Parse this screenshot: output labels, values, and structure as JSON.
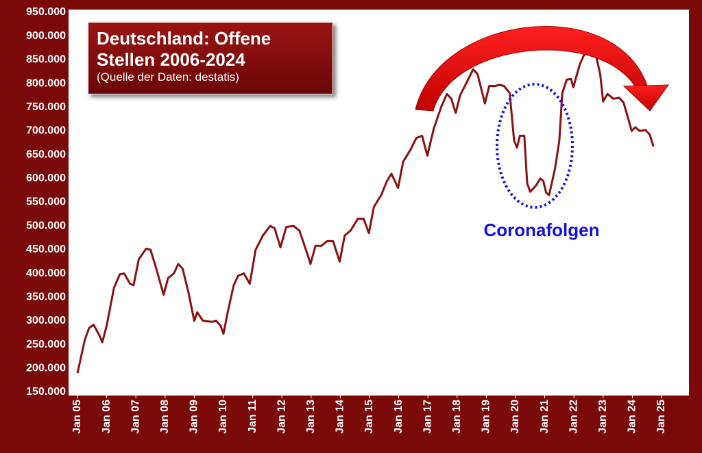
{
  "chart_data": {
    "type": "line",
    "title": "Deutschland: Offene Stellen 2006-2024",
    "subtitle": "(Quelle der Daten: destatis)",
    "annotation": "Coronafolgen",
    "color": "#8b1010",
    "xlim": [
      2005,
      2025
    ],
    "xticks": [
      {
        "value": 2005,
        "label": "Jan 05"
      },
      {
        "value": 2006,
        "label": "Jan 06"
      },
      {
        "value": 2007,
        "label": "Jan 07"
      },
      {
        "value": 2008,
        "label": "Jan 08"
      },
      {
        "value": 2009,
        "label": "Jan 09"
      },
      {
        "value": 2010,
        "label": "Jan 10"
      },
      {
        "value": 2011,
        "label": "Jan 11"
      },
      {
        "value": 2012,
        "label": "Jan 12"
      },
      {
        "value": 2013,
        "label": "Jan 13"
      },
      {
        "value": 2014,
        "label": "Jan 14"
      },
      {
        "value": 2015,
        "label": "Jan 15"
      },
      {
        "value": 2016,
        "label": "Jan 16"
      },
      {
        "value": 2017,
        "label": "Jan 17"
      },
      {
        "value": 2018,
        "label": "Jan 18"
      },
      {
        "value": 2019,
        "label": "Jan 19"
      },
      {
        "value": 2020,
        "label": "Jan 20"
      },
      {
        "value": 2021,
        "label": "Jan 21"
      },
      {
        "value": 2022,
        "label": "Jan 22"
      },
      {
        "value": 2023,
        "label": "Jan 23"
      },
      {
        "value": 2024,
        "label": "Jan 24"
      },
      {
        "value": 2025,
        "label": "Jan 25"
      }
    ],
    "ylim": [
      150000,
      950000
    ],
    "yticks": [
      {
        "value": 150000,
        "label": "150.000"
      },
      {
        "value": 200000,
        "label": "200.000"
      },
      {
        "value": 250000,
        "label": "250.000"
      },
      {
        "value": 300000,
        "label": "300.000"
      },
      {
        "value": 350000,
        "label": "350.000"
      },
      {
        "value": 400000,
        "label": "400.000"
      },
      {
        "value": 450000,
        "label": "450.000"
      },
      {
        "value": 500000,
        "label": "500.000"
      },
      {
        "value": 550000,
        "label": "550.000"
      },
      {
        "value": 600000,
        "label": "600.000"
      },
      {
        "value": 650000,
        "label": "650.000"
      },
      {
        "value": 700000,
        "label": "700.000"
      },
      {
        "value": 750000,
        "label": "750.000"
      },
      {
        "value": 800000,
        "label": "800.000"
      },
      {
        "value": 850000,
        "label": "850.000"
      },
      {
        "value": 900000,
        "label": "900.000"
      },
      {
        "value": 950000,
        "label": "950.000"
      }
    ],
    "x": [
      2005.0,
      2005.25,
      2005.4,
      2005.55,
      2005.75,
      2005.85,
      2006.0,
      2006.25,
      2006.45,
      2006.6,
      2006.8,
      2006.92,
      2007.1,
      2007.35,
      2007.5,
      2007.7,
      2007.95,
      2008.1,
      2008.3,
      2008.45,
      2008.6,
      2008.8,
      2009.0,
      2009.1,
      2009.3,
      2009.6,
      2009.75,
      2009.9,
      2010.0,
      2010.15,
      2010.35,
      2010.5,
      2010.7,
      2010.9,
      2011.1,
      2011.35,
      2011.6,
      2011.75,
      2011.95,
      2012.15,
      2012.4,
      2012.6,
      2012.85,
      2012.98,
      2013.15,
      2013.35,
      2013.55,
      2013.75,
      2013.98,
      2014.15,
      2014.35,
      2014.6,
      2014.8,
      2014.98,
      2015.15,
      2015.4,
      2015.6,
      2015.75,
      2015.98,
      2016.15,
      2016.4,
      2016.6,
      2016.8,
      2016.98,
      2017.2,
      2017.45,
      2017.65,
      2017.8,
      2017.95,
      2018.1,
      2018.35,
      2018.55,
      2018.7,
      2018.95,
      2019.1,
      2019.3,
      2019.45,
      2019.6,
      2019.8,
      2019.95,
      2020.05,
      2020.15,
      2020.3,
      2020.4,
      2020.5,
      2020.7,
      2020.85,
      2020.95,
      2021.05,
      2021.15,
      2021.35,
      2021.5,
      2021.6,
      2021.75,
      2021.9,
      2021.98,
      2022.2,
      2022.45,
      2022.6,
      2022.75,
      2022.9,
      2023.0,
      2023.15,
      2023.35,
      2023.55,
      2023.7,
      2023.98,
      2024.1,
      2024.25,
      2024.45,
      2024.6,
      2024.72
    ],
    "values": [
      190000,
      260000,
      285000,
      292000,
      270000,
      255000,
      290000,
      370000,
      398000,
      400000,
      378000,
      375000,
      430000,
      452000,
      450000,
      410000,
      355000,
      390000,
      400000,
      420000,
      410000,
      360000,
      300000,
      318000,
      300000,
      298000,
      300000,
      290000,
      273000,
      320000,
      375000,
      395000,
      400000,
      378000,
      450000,
      480000,
      500000,
      495000,
      455000,
      498000,
      500000,
      490000,
      445000,
      420000,
      458000,
      458000,
      468000,
      468000,
      425000,
      480000,
      490000,
      515000,
      515000,
      485000,
      540000,
      565000,
      595000,
      610000,
      580000,
      635000,
      660000,
      685000,
      690000,
      648000,
      705000,
      750000,
      778000,
      768000,
      738000,
      775000,
      805000,
      830000,
      820000,
      758000,
      795000,
      795000,
      797000,
      795000,
      780000,
      680000,
      665000,
      690000,
      690000,
      590000,
      572000,
      585000,
      600000,
      595000,
      570000,
      565000,
      620000,
      680000,
      780000,
      808000,
      810000,
      792000,
      840000,
      875000,
      888000,
      860000,
      820000,
      762000,
      778000,
      768000,
      770000,
      760000,
      700000,
      708000,
      700000,
      702000,
      692000,
      667000
    ]
  }
}
